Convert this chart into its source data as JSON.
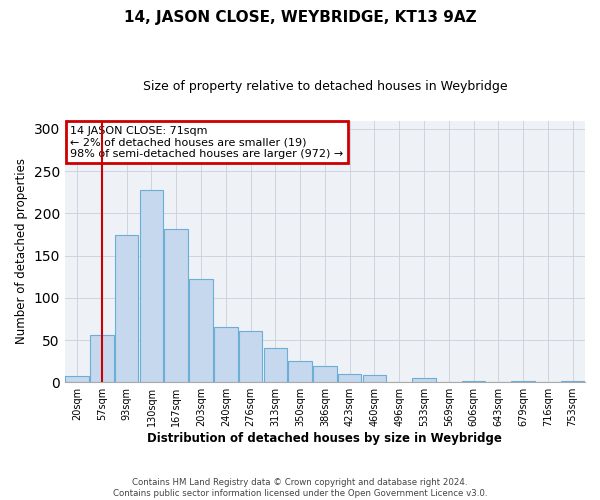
{
  "title": "14, JASON CLOSE, WEYBRIDGE, KT13 9AZ",
  "subtitle": "Size of property relative to detached houses in Weybridge",
  "xlabel": "Distribution of detached houses by size in Weybridge",
  "ylabel": "Number of detached properties",
  "bin_labels": [
    "20sqm",
    "57sqm",
    "93sqm",
    "130sqm",
    "167sqm",
    "203sqm",
    "240sqm",
    "276sqm",
    "313sqm",
    "350sqm",
    "386sqm",
    "423sqm",
    "460sqm",
    "496sqm",
    "533sqm",
    "569sqm",
    "606sqm",
    "643sqm",
    "679sqm",
    "716sqm",
    "753sqm"
  ],
  "bar_heights": [
    7,
    56,
    175,
    228,
    181,
    122,
    65,
    61,
    40,
    25,
    19,
    10,
    9,
    0,
    5,
    0,
    1,
    0,
    2,
    0,
    1
  ],
  "bar_color": "#c5d8ed",
  "bar_edge_color": "#6baed6",
  "vline_x": 1,
  "vline_color": "#cc0000",
  "annotation_title": "14 JASON CLOSE: 71sqm",
  "annotation_line1": "← 2% of detached houses are smaller (19)",
  "annotation_line2": "98% of semi-detached houses are larger (972) →",
  "annotation_box_color": "#cc0000",
  "ylim": [
    0,
    310
  ],
  "yticks": [
    0,
    50,
    100,
    150,
    200,
    250,
    300
  ],
  "footer_line1": "Contains HM Land Registry data © Crown copyright and database right 2024.",
  "footer_line2": "Contains public sector information licensed under the Open Government Licence v3.0.",
  "background_color": "#eef2f7"
}
